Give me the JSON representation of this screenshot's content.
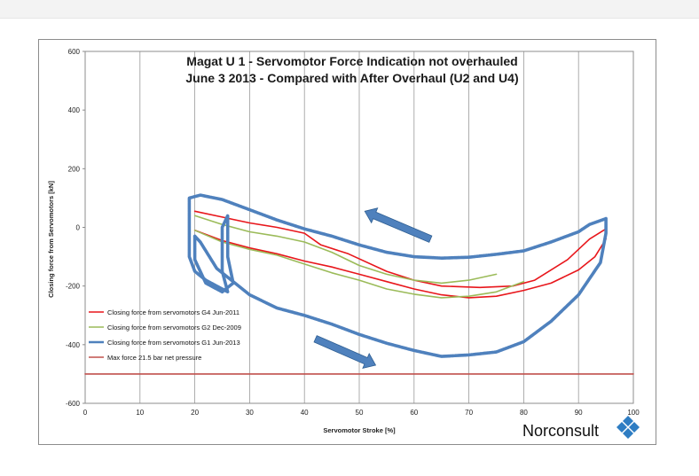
{
  "chart_data": {
    "type": "line",
    "title": "Magat U 1 - Servomotor Force Indication not overhauled",
    "subtitle": "June 3 2013 - Compared with After Overhaul (U2 and U4)",
    "xlabel": "Servomotor Stroke [%]",
    "ylabel": "Closing force from Servomotors [kN]",
    "xlim": [
      0,
      100
    ],
    "ylim": [
      -600,
      600
    ],
    "x_ticks": [
      "0",
      "10",
      "20",
      "30",
      "40",
      "50",
      "60",
      "70",
      "80",
      "90",
      "100"
    ],
    "y_ticks": [
      "600",
      "400",
      "200",
      "0",
      "-200",
      "-400",
      "-600"
    ],
    "gridlines": "vertical",
    "legend_position": "bottom-left",
    "series": [
      {
        "name": "Closing force from servomotors G4 Jun-2011",
        "color": "#e8161b",
        "paths": [
          [
            [
              20,
              55
            ],
            [
              25,
              35
            ],
            [
              30,
              15
            ],
            [
              35,
              0
            ],
            [
              40,
              -20
            ],
            [
              43,
              -60
            ],
            [
              48,
              -90
            ],
            [
              55,
              -150
            ],
            [
              60,
              -180
            ],
            [
              65,
              -200
            ],
            [
              72,
              -205
            ],
            [
              78,
              -200
            ],
            [
              82,
              -180
            ],
            [
              88,
              -110
            ],
            [
              92,
              -40
            ],
            [
              95,
              -5
            ]
          ],
          [
            [
              20,
              -10
            ],
            [
              25,
              -45
            ],
            [
              30,
              -70
            ],
            [
              35,
              -90
            ],
            [
              40,
              -115
            ],
            [
              45,
              -135
            ],
            [
              50,
              -160
            ],
            [
              55,
              -185
            ],
            [
              60,
              -210
            ],
            [
              65,
              -230
            ],
            [
              70,
              -240
            ],
            [
              75,
              -235
            ],
            [
              80,
              -215
            ],
            [
              85,
              -190
            ],
            [
              90,
              -145
            ],
            [
              93,
              -100
            ],
            [
              95,
              -40
            ]
          ]
        ]
      },
      {
        "name": "Closing force from servomotors G2 Dec-2009",
        "color": "#9bbb59",
        "paths": [
          [
            [
              20,
              40
            ],
            [
              25,
              10
            ],
            [
              30,
              -15
            ],
            [
              35,
              -30
            ],
            [
              40,
              -50
            ],
            [
              45,
              -85
            ],
            [
              50,
              -130
            ],
            [
              55,
              -160
            ],
            [
              60,
              -180
            ],
            [
              65,
              -190
            ],
            [
              70,
              -180
            ],
            [
              75,
              -160
            ]
          ],
          [
            [
              20,
              -10
            ],
            [
              25,
              -50
            ],
            [
              30,
              -75
            ],
            [
              35,
              -95
            ],
            [
              40,
              -125
            ],
            [
              45,
              -155
            ],
            [
              50,
              -180
            ],
            [
              55,
              -210
            ],
            [
              60,
              -228
            ],
            [
              65,
              -240
            ],
            [
              70,
              -235
            ],
            [
              75,
              -220
            ],
            [
              80,
              -185
            ]
          ]
        ]
      },
      {
        "name": "Closing force from servomotors G1 Jun-2013",
        "color": "#4f81bd",
        "paths": [
          [
            [
              95,
              30
            ],
            [
              92,
              10
            ],
            [
              90,
              -15
            ],
            [
              85,
              -50
            ],
            [
              80,
              -80
            ],
            [
              75,
              -92
            ],
            [
              70,
              -102
            ],
            [
              65,
              -105
            ],
            [
              60,
              -100
            ],
            [
              55,
              -85
            ],
            [
              50,
              -60
            ],
            [
              45,
              -30
            ],
            [
              40,
              -5
            ],
            [
              35,
              25
            ],
            [
              30,
              60
            ],
            [
              25,
              95
            ],
            [
              21,
              110
            ],
            [
              19,
              100
            ],
            [
              19,
              0
            ],
            [
              19,
              -100
            ],
            [
              20,
              -150
            ],
            [
              22,
              -180
            ],
            [
              24,
              -200
            ],
            [
              26,
              -220
            ],
            [
              25,
              -150
            ],
            [
              25,
              0
            ],
            [
              26,
              40
            ],
            [
              26,
              -100
            ],
            [
              27,
              -190
            ],
            [
              25,
              -220
            ],
            [
              22,
              -190
            ],
            [
              20,
              -110
            ],
            [
              20,
              -30
            ],
            [
              21,
              -50
            ],
            [
              24,
              -140
            ],
            [
              30,
              -230
            ],
            [
              35,
              -275
            ],
            [
              40,
              -300
            ],
            [
              45,
              -330
            ],
            [
              50,
              -365
            ],
            [
              55,
              -395
            ],
            [
              60,
              -420
            ],
            [
              65,
              -440
            ],
            [
              70,
              -435
            ],
            [
              75,
              -425
            ],
            [
              80,
              -390
            ],
            [
              85,
              -320
            ],
            [
              90,
              -230
            ],
            [
              94,
              -120
            ],
            [
              95,
              -20
            ],
            [
              95,
              30
            ]
          ]
        ]
      },
      {
        "name": "Max force 21.5 bar net pressure",
        "color": "#c0504d",
        "paths": [
          [
            [
              0,
              -500
            ],
            [
              100,
              -500
            ]
          ]
        ]
      }
    ],
    "annotations": [
      {
        "type": "arrow",
        "from": [
          63,
          -40
        ],
        "to": [
          51,
          55
        ],
        "color": "#4f81bd"
      },
      {
        "type": "arrow",
        "from": [
          42,
          -380
        ],
        "to": [
          53,
          -470
        ],
        "color": "#4f81bd"
      }
    ]
  },
  "logo": {
    "text": "Norconsult",
    "color": "#2e7dc3"
  }
}
